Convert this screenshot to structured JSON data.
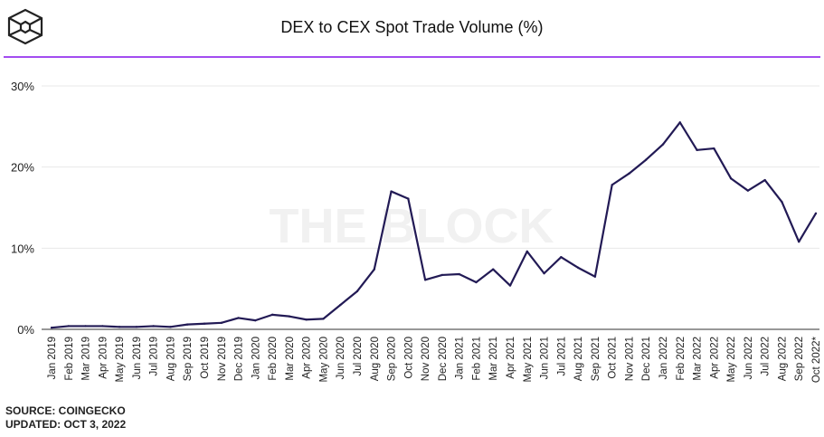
{
  "chart_data": {
    "type": "line",
    "title": "DEX to CEX Spot Trade Volume (%)",
    "xlabel": "",
    "ylabel": "",
    "ylim": [
      0,
      30
    ],
    "yticks": [
      "0%",
      "10%",
      "20%",
      "30%"
    ],
    "grid": true,
    "watermark": "THE BLOCK",
    "categories": [
      "Jan 2019",
      "Feb 2019",
      "Mar 2019",
      "Apr 2019",
      "May 2019",
      "Jun 2019",
      "Jul 2019",
      "Aug 2019",
      "Sep 2019",
      "Oct 2019",
      "Nov 2019",
      "Dec 2019",
      "Jan 2020",
      "Feb 2020",
      "Mar 2020",
      "Apr 2020",
      "May 2020",
      "Jun 2020",
      "Jul 2020",
      "Aug 2020",
      "Sep 2020",
      "Oct 2020",
      "Nov 2020",
      "Dec 2020",
      "Jan 2021",
      "Feb 2021",
      "Mar 2021",
      "Apr 2021",
      "May 2021",
      "Jun 2021",
      "Jul 2021",
      "Aug 2021",
      "Sep 2021",
      "Oct 2021",
      "Nov 2021",
      "Dec 2021",
      "Jan 2022",
      "Feb 2022",
      "Mar 2022",
      "Apr 2022",
      "May 2022",
      "Jun 2022",
      "Jul 2022",
      "Aug 2022",
      "Sep 2022",
      "Oct 2022*"
    ],
    "series": [
      {
        "name": "DEX to CEX",
        "color": "#221a55",
        "values": [
          0.2,
          0.4,
          0.4,
          0.4,
          0.3,
          0.3,
          0.4,
          0.3,
          0.6,
          0.7,
          0.8,
          1.4,
          1.1,
          1.8,
          1.6,
          1.2,
          1.3,
          3.0,
          4.7,
          7.4,
          17.0,
          16.1,
          6.1,
          6.7,
          6.8,
          5.8,
          7.4,
          5.4,
          9.6,
          6.9,
          8.9,
          7.6,
          6.5,
          17.8,
          19.2,
          20.9,
          22.8,
          25.5,
          22.1,
          22.3,
          18.6,
          17.1,
          18.4,
          15.7,
          10.8,
          14.3
        ]
      }
    ]
  },
  "footer": {
    "source": "SOURCE: COINGECKO",
    "updated": "UPDATED: OCT 3, 2022"
  }
}
